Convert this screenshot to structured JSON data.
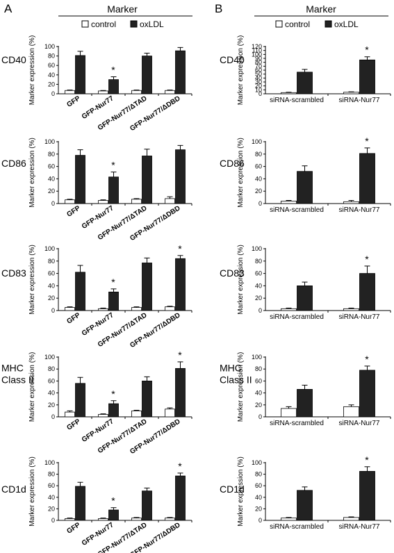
{
  "panels": [
    {
      "letter": "A",
      "header": "Marker",
      "legend": {
        "control": "control",
        "oxldl": "oxLDL"
      },
      "categories": [
        "GFP",
        "GFP-Nur77",
        "GFP-Nur77/ΔTAD",
        "GFP-Nur77/ΔDBD"
      ]
    },
    {
      "letter": "B",
      "header": "Marker",
      "legend": {
        "control": "control",
        "oxldl": "oxLDL"
      },
      "categories": [
        "siRNA-scrambled",
        "siRNA-Nur77"
      ]
    }
  ],
  "colors": {
    "control": "#ffffff",
    "oxldl": "#222222",
    "axis": "#000000"
  },
  "chart_data": [
    {
      "id": "A-CD40",
      "type": "bar",
      "row_label": [
        "CD40"
      ],
      "ylabel": "Marker expression (%)",
      "ylim": [
        0,
        100
      ],
      "yticks": [
        0,
        20,
        40,
        60,
        80,
        100
      ],
      "categories": [
        "GFP",
        "GFP-Nur77",
        "GFP-Nur77/ΔTAD",
        "GFP-Nur77/ΔDBD"
      ],
      "series": [
        {
          "name": "control",
          "values": [
            7,
            6,
            7,
            7
          ],
          "errors": [
            1,
            1,
            1,
            1
          ]
        },
        {
          "name": "oxLDL",
          "values": [
            81,
            30,
            80,
            91
          ],
          "errors": [
            9,
            6,
            6,
            7
          ]
        }
      ],
      "significant": [
        1
      ]
    },
    {
      "id": "B-CD40",
      "type": "bar",
      "row_label": [
        "CD40"
      ],
      "ylabel": "Marker expression (%)",
      "ylim": [
        0,
        120
      ],
      "yticks": [
        0,
        10,
        20,
        30,
        40,
        50,
        60,
        70,
        80,
        90,
        100,
        110,
        120
      ],
      "categories": [
        "siRNA-scrambled",
        "siRNA-Nur77"
      ],
      "series": [
        {
          "name": "control",
          "values": [
            3,
            4
          ],
          "errors": [
            1,
            1
          ]
        },
        {
          "name": "oxLDL",
          "values": [
            55,
            86
          ],
          "errors": [
            7,
            8
          ]
        }
      ],
      "significant": [
        1
      ]
    },
    {
      "id": "A-CD86",
      "type": "bar",
      "row_label": [
        "CD86"
      ],
      "ylabel": "Marker expression (%)",
      "ylim": [
        0,
        100
      ],
      "yticks": [
        0,
        20,
        40,
        60,
        80,
        100
      ],
      "categories": [
        "GFP",
        "GFP-Nur77",
        "GFP-Nur77/ΔTAD",
        "GFP-Nur77/ΔDBD"
      ],
      "series": [
        {
          "name": "control",
          "values": [
            6,
            5,
            7,
            8
          ],
          "errors": [
            1,
            1,
            1,
            3
          ]
        },
        {
          "name": "oxLDL",
          "values": [
            78,
            43,
            77,
            87
          ],
          "errors": [
            9,
            8,
            11,
            7
          ]
        }
      ],
      "significant": [
        1
      ]
    },
    {
      "id": "B-CD86",
      "type": "bar",
      "row_label": [
        "CD86"
      ],
      "ylabel": "Marker expression (%)",
      "ylim": [
        0,
        100
      ],
      "yticks": [
        0,
        20,
        40,
        60,
        80,
        100
      ],
      "categories": [
        "siRNA-scrambled",
        "siRNA-Nur77"
      ],
      "series": [
        {
          "name": "control",
          "values": [
            4,
            3
          ],
          "errors": [
            1,
            2
          ]
        },
        {
          "name": "oxLDL",
          "values": [
            52,
            81
          ],
          "errors": [
            9,
            9
          ]
        }
      ],
      "significant": [
        1
      ]
    },
    {
      "id": "A-CD83",
      "type": "bar",
      "row_label": [
        "CD83"
      ],
      "ylabel": "Marker expression (%)",
      "ylim": [
        0,
        100
      ],
      "yticks": [
        0,
        20,
        40,
        60,
        80,
        100
      ],
      "categories": [
        "GFP",
        "GFP-Nur77",
        "GFP-Nur77/ΔTAD",
        "GFP-Nur77/ΔDBD"
      ],
      "series": [
        {
          "name": "control",
          "values": [
            5,
            3,
            5,
            6
          ],
          "errors": [
            1,
            1,
            1,
            1
          ]
        },
        {
          "name": "oxLDL",
          "values": [
            62,
            30,
            77,
            84
          ],
          "errors": [
            11,
            5,
            8,
            5
          ]
        }
      ],
      "significant": [
        1,
        3
      ]
    },
    {
      "id": "B-CD83",
      "type": "bar",
      "row_label": [
        "CD83"
      ],
      "ylabel": "Marker expression (%)",
      "ylim": [
        0,
        100
      ],
      "yticks": [
        0,
        20,
        40,
        60,
        80,
        100
      ],
      "categories": [
        "siRNA-scrambled",
        "siRNA-Nur77"
      ],
      "series": [
        {
          "name": "control",
          "values": [
            3,
            3
          ],
          "errors": [
            1,
            1
          ]
        },
        {
          "name": "oxLDL",
          "values": [
            40,
            60
          ],
          "errors": [
            6,
            12
          ]
        }
      ],
      "significant": [
        1
      ]
    },
    {
      "id": "A-MHC",
      "type": "bar",
      "row_label": [
        "MHC",
        "Class II"
      ],
      "ylabel": "Marker expression (%)",
      "ylim": [
        0,
        100
      ],
      "yticks": [
        0,
        20,
        40,
        60,
        80,
        100
      ],
      "categories": [
        "GFP",
        "GFP-Nur77",
        "GFP-Nur77/ΔTAD",
        "GFP-Nur77/ΔDBD"
      ],
      "series": [
        {
          "name": "control",
          "values": [
            8,
            4,
            10,
            13
          ],
          "errors": [
            2,
            1,
            1,
            2
          ]
        },
        {
          "name": "oxLDL",
          "values": [
            56,
            22,
            60,
            81
          ],
          "errors": [
            10,
            5,
            7,
            11
          ]
        }
      ],
      "significant": [
        1,
        3
      ]
    },
    {
      "id": "B-MHC",
      "type": "bar",
      "row_label": [
        "MHC",
        "Class II"
      ],
      "ylabel": "Marker expression (%)",
      "ylim": [
        0,
        100
      ],
      "yticks": [
        0,
        20,
        40,
        60,
        80,
        100
      ],
      "categories": [
        "siRNA-scrambled",
        "siRNA-Nur77"
      ],
      "series": [
        {
          "name": "control",
          "values": [
            14,
            17
          ],
          "errors": [
            3,
            3
          ]
        },
        {
          "name": "oxLDL",
          "values": [
            46,
            78
          ],
          "errors": [
            7,
            7
          ]
        }
      ],
      "significant": [
        1
      ]
    },
    {
      "id": "A-CD1d",
      "type": "bar",
      "row_label": [
        "CD1d"
      ],
      "ylabel": "Marker expression (%)",
      "ylim": [
        0,
        100
      ],
      "yticks": [
        0,
        20,
        40,
        60,
        80,
        100
      ],
      "categories": [
        "GFP",
        "GFP-Nur77",
        "GFP-Nur77/ΔTAD",
        "GFP-Nur77/ΔDBD"
      ],
      "series": [
        {
          "name": "control",
          "values": [
            3,
            3,
            4,
            4
          ],
          "errors": [
            1,
            1,
            1,
            1
          ]
        },
        {
          "name": "oxLDL",
          "values": [
            59,
            18,
            51,
            77
          ],
          "errors": [
            7,
            4,
            5,
            5
          ]
        }
      ],
      "significant": [
        1,
        3
      ]
    },
    {
      "id": "B-CD1d",
      "type": "bar",
      "row_label": [
        "CD1d"
      ],
      "ylabel": "Marker expression (%)",
      "ylim": [
        0,
        100
      ],
      "yticks": [
        0,
        20,
        40,
        60,
        80,
        100
      ],
      "categories": [
        "siRNA-scrambled",
        "siRNA-Nur77"
      ],
      "series": [
        {
          "name": "control",
          "values": [
            4,
            5
          ],
          "errors": [
            1,
            1
          ]
        },
        {
          "name": "oxLDL",
          "values": [
            52,
            85
          ],
          "errors": [
            6,
            8
          ]
        }
      ],
      "significant": [
        1
      ]
    }
  ]
}
